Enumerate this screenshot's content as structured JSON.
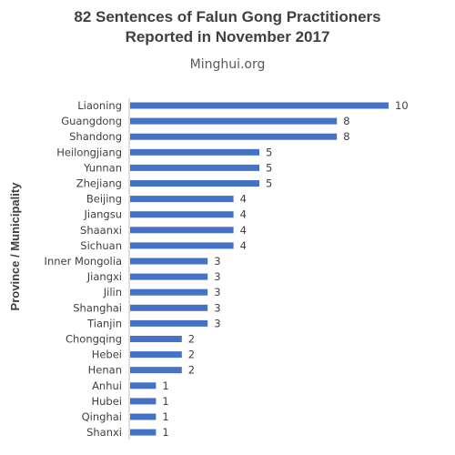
{
  "chart_data": {
    "type": "bar",
    "orientation": "horizontal",
    "title": "82 Sentences of Falun Gong Practitioners\nReported in November 2017",
    "subtitle": "Minghui.org",
    "ylabel": "Province  / Municipality",
    "xlabel": "",
    "xlim": [
      0,
      10
    ],
    "grid": false,
    "legend": "none",
    "bar_color": "#4472C4",
    "categories": [
      "Liaoning",
      "Guangdong",
      "Shandong",
      "Heilongjiang",
      "Yunnan",
      "Zhejiang",
      "Beijing",
      "Jiangsu",
      "Shaanxi",
      "Sichuan",
      "Inner Mongolia",
      "Jiangxi",
      "Jilin",
      "Shanghai",
      "Tianjin",
      "Chongqing",
      "Hebei",
      "Henan",
      "Anhui",
      "Hubei",
      "Qinghai",
      "Shanxi"
    ],
    "values": [
      10,
      8,
      8,
      5,
      5,
      5,
      4,
      4,
      4,
      4,
      3,
      3,
      3,
      3,
      3,
      2,
      2,
      2,
      1,
      1,
      1,
      1
    ],
    "data_labels": [
      "10",
      "8",
      "8",
      "5",
      "5",
      "5",
      "4",
      "4",
      "4",
      "4",
      "3",
      "3",
      "3",
      "3",
      "3",
      "2",
      "2",
      "2",
      "1",
      "1",
      "1",
      "1"
    ]
  }
}
